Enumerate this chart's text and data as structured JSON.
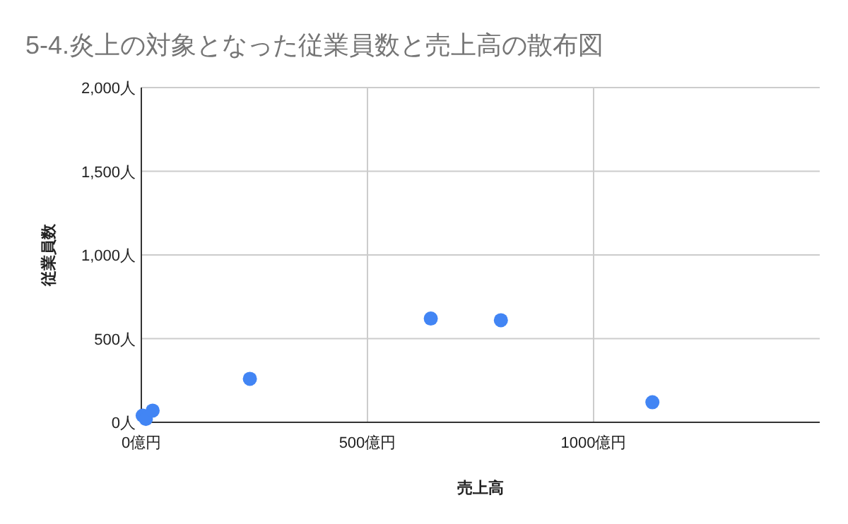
{
  "chart_data": {
    "type": "scatter",
    "title": "5-4.炎上の対象となった従業員数と売上高の散布図",
    "xlabel": "売上高",
    "ylabel": "従業員数",
    "x": [
      3,
      10,
      25,
      240,
      640,
      795,
      1130
    ],
    "series": [
      {
        "color": "#4285f4",
        "values": [
          40,
          20,
          70,
          260,
          620,
          610,
          120
        ]
      }
    ],
    "xlim": [
      0,
      1500
    ],
    "xticks": [
      {
        "value": 0,
        "label": "0億円"
      },
      {
        "value": 500,
        "label": "500億円"
      },
      {
        "value": 1000,
        "label": "1000億円"
      }
    ],
    "ylim": [
      0,
      2000
    ],
    "yticks": [
      {
        "value": 0,
        "label": "0人"
      },
      {
        "value": 500,
        "label": "500人"
      },
      {
        "value": 1000,
        "label": "1,000人"
      },
      {
        "value": 1500,
        "label": "1,500人"
      },
      {
        "value": 2000,
        "label": "2,000人"
      }
    ],
    "grid": true,
    "marker": "circle"
  }
}
